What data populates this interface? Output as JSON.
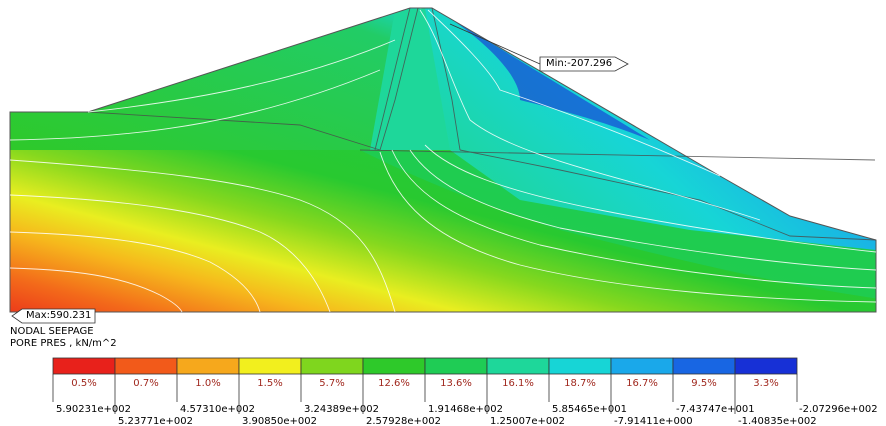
{
  "plot": {
    "max_label": "Max:590.231",
    "min_label": "Min:-207.296",
    "caption_line1": "NODAL SEEPAGE",
    "caption_line2": "PORE PRES , kN/m^2"
  },
  "legend": {
    "colors": [
      "#e8211b",
      "#f25a1a",
      "#f6a81c",
      "#f2ef1e",
      "#7fd61e",
      "#2ec92a",
      "#1fcc55",
      "#1ed79a",
      "#17d5d6",
      "#1aa8ea",
      "#1866e3",
      "#1730d6"
    ],
    "percentages": [
      "0.5%",
      "0.7%",
      "1.0%",
      "1.5%",
      "5.7%",
      "12.6%",
      "13.6%",
      "16.1%",
      "18.7%",
      "16.7%",
      "9.5%",
      "3.3%"
    ],
    "tick_values": [
      "5.90231e+002",
      "5.23771e+002",
      "4.57310e+002",
      "3.90850e+002",
      "3.24389e+002",
      "2.57928e+002",
      "1.91468e+002",
      "1.25007e+002",
      "5.85465e+001",
      "-7.91411e+000",
      "-7.43747e+001",
      "-1.40835e+002",
      "-2.07296e+002"
    ]
  }
}
